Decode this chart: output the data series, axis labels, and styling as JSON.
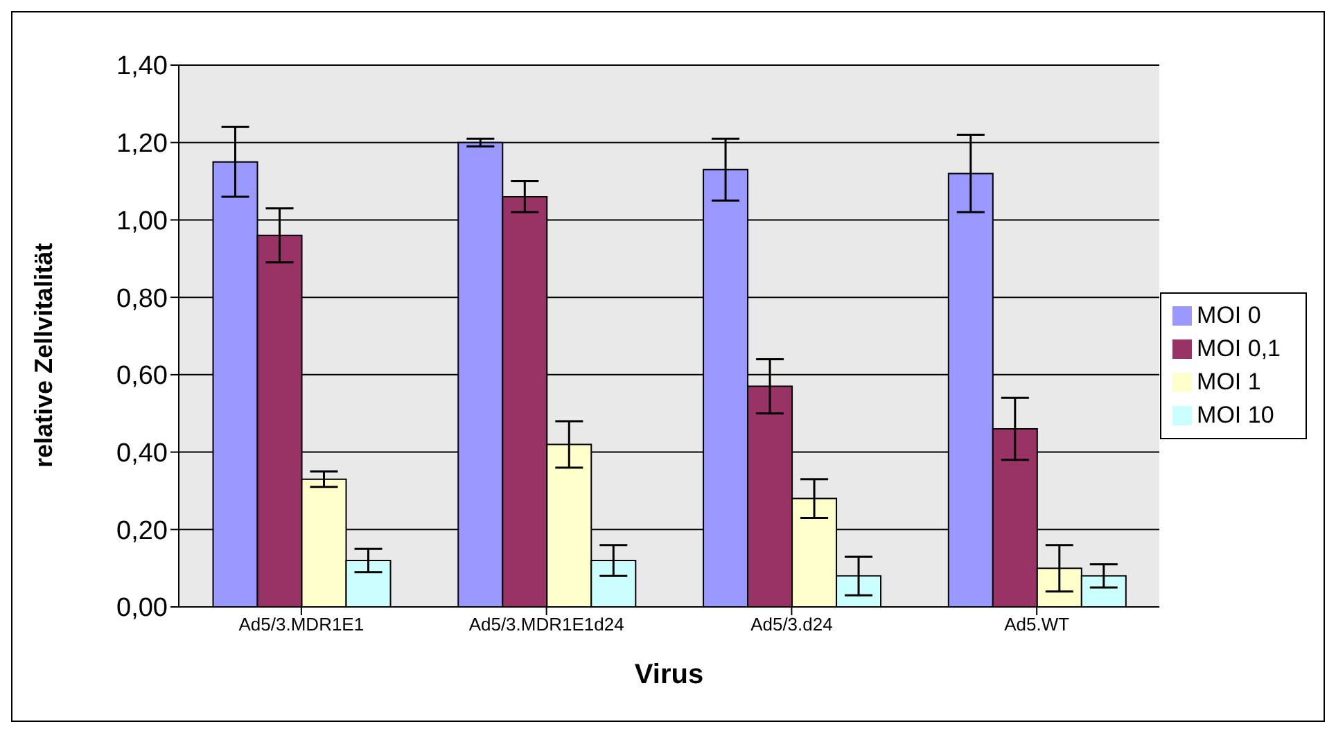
{
  "chart_data": {
    "type": "bar",
    "xlabel": "Virus",
    "ylabel": "relative Zellvitalität",
    "categories": [
      "Ad5/3.MDR1E1",
      "Ad5/3.MDR1E1d24",
      "Ad5/3.d24",
      "Ad5.WT"
    ],
    "series": [
      {
        "name": "MOI 0",
        "color": "#9999ff",
        "values": [
          1.15,
          1.2,
          1.13,
          1.12
        ],
        "errors": [
          0.09,
          0.01,
          0.08,
          0.1
        ]
      },
      {
        "name": "MOI 0,1",
        "color": "#993366",
        "values": [
          0.96,
          1.06,
          0.57,
          0.46
        ],
        "errors": [
          0.07,
          0.04,
          0.07,
          0.08
        ]
      },
      {
        "name": "MOI 1",
        "color": "#ffffcc",
        "values": [
          0.33,
          0.42,
          0.28,
          0.1
        ],
        "errors": [
          0.02,
          0.06,
          0.05,
          0.06
        ]
      },
      {
        "name": "MOI 10",
        "color": "#ccffff",
        "values": [
          0.12,
          0.12,
          0.08,
          0.08
        ],
        "errors": [
          0.03,
          0.04,
          0.05,
          0.03
        ]
      }
    ],
    "ylim": [
      0,
      1.4
    ],
    "yticks": [
      {
        "value": 0,
        "label": "0,00"
      },
      {
        "value": 0.2,
        "label": "0,20"
      },
      {
        "value": 0.4,
        "label": "0,40"
      },
      {
        "value": 0.6,
        "label": "0,60"
      },
      {
        "value": 0.8,
        "label": "0,80"
      },
      {
        "value": 1,
        "label": "1,00"
      },
      {
        "value": 1.2,
        "label": "1,20"
      },
      {
        "value": 1.4,
        "label": "1,40"
      }
    ],
    "grid": "y",
    "legend": "right"
  }
}
